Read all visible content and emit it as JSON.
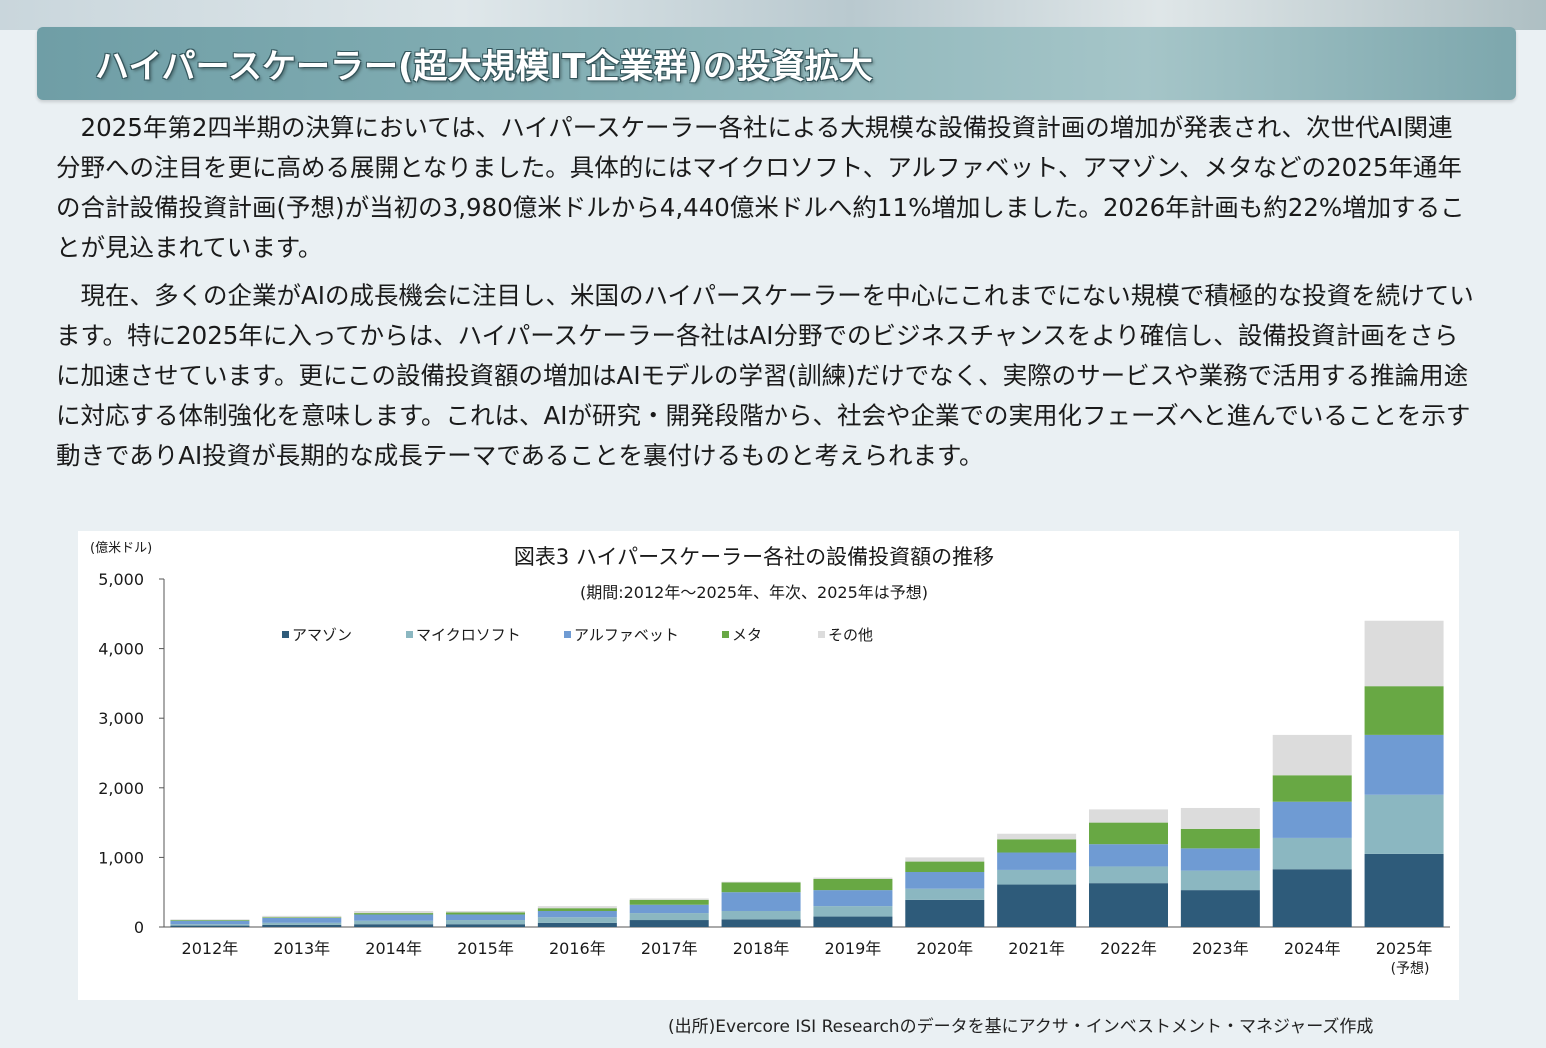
{
  "header": {
    "title": "ハイパースケーラー(超大規模IT企業群)の投資拡大"
  },
  "body": {
    "paragraph1": "2025年第2四半期の決算においては、ハイパースケーラー各社による大規模な設備投資計画の増加が発表され、次世代AI関連分野への注目を更に高める展開となりました。具体的にはマイクロソフト、アルファベット、アマゾン、メタなどの2025年通年の合計設備投資計画(予想)が当初の3,980億米ドルから4,440億米ドルへ約11%増加しました。2026年計画も約22%増加することが見込まれています。",
    "paragraph2": "現在、多くの企業がAIの成長機会に注目し、米国のハイパースケーラーを中心にこれまでにない規模で積極的な投資を続けています。特に2025年に入ってからは、ハイパースケーラー各社はAI分野でのビジネスチャンスをより確信し、設備投資計画をさらに加速させています。更にこの設備投資額の増加はAIモデルの学習(訓練)だけでなく、実際のサービスや業務で活用する推論用途に対応する体制強化を意味します。これは、AIが研究・開発段階から、社会や企業での実用化フェーズへと進んでいることを示す動きでありAI投資が長期的な成長テーマであることを裏付けるものと考えられます。"
  },
  "source": "(出所)Evercore ISI Researchのデータを基にアクサ・インベストメント・マネジャーズ作成",
  "chart_data": {
    "type": "bar",
    "stacked": true,
    "title": "図表3 ハイパースケーラー各社の設備投資額の推移",
    "subtitle": "(期間:2012年～2025年、年次、2025年は予想)",
    "ylabel": "(億米ドル)",
    "ylim": [
      0,
      5000
    ],
    "yticks": [
      "0",
      "1,000",
      "2,000",
      "3,000",
      "4,000",
      "5,000"
    ],
    "ytick_values": [
      0,
      1000,
      2000,
      3000,
      4000,
      5000
    ],
    "legend_position": "top-left",
    "categories": [
      "2012年",
      "2013年",
      "2014年",
      "2015年",
      "2016年",
      "2017年",
      "2018年",
      "2019年",
      "2020年",
      "2021年",
      "2022年",
      "2023年",
      "2024年",
      "2025年"
    ],
    "category_notes": [
      "",
      "",
      "",
      "",
      "",
      "",
      "",
      "",
      "",
      "",
      "",
      "",
      "",
      "(予想)"
    ],
    "series": [
      {
        "name": "アマゾン",
        "color": "#2e5b7a",
        "values": [
          20,
          30,
          40,
          40,
          60,
          100,
          110,
          150,
          390,
          610,
          630,
          530,
          830,
          1050
        ]
      },
      {
        "name": "マイクロソフト",
        "color": "#8bb7c1",
        "values": [
          20,
          30,
          50,
          60,
          80,
          100,
          120,
          150,
          160,
          210,
          240,
          280,
          450,
          850
        ]
      },
      {
        "name": "アルファベット",
        "color": "#6f9bd3",
        "values": [
          50,
          70,
          90,
          80,
          90,
          120,
          270,
          230,
          240,
          250,
          320,
          320,
          520,
          860
        ]
      },
      {
        "name": "メタ",
        "color": "#68a844",
        "values": [
          10,
          10,
          20,
          30,
          40,
          70,
          140,
          160,
          150,
          190,
          310,
          280,
          380,
          700
        ]
      },
      {
        "name": "その他",
        "color": "#dcdcdc",
        "values": [
          10,
          20,
          30,
          20,
          30,
          20,
          10,
          20,
          60,
          80,
          190,
          300,
          580,
          940
        ]
      }
    ]
  }
}
